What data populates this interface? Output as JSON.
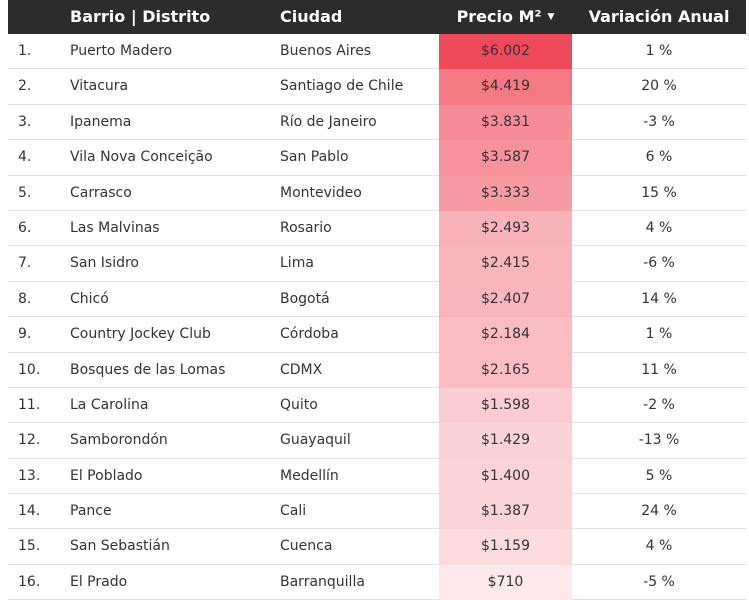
{
  "table": {
    "headers": {
      "barrio": "Barrio | Distrito",
      "ciudad": "Ciudad",
      "precio": "Precio M²",
      "variacion": "Variación Anual"
    },
    "sort_icon": "caret-down-icon",
    "heat_color_high": "#ef4a5a",
    "heat_color_low": "#fde8eb"
  },
  "chart_data": {
    "type": "table",
    "columns": [
      "Barrio | Distrito",
      "Ciudad",
      "Precio M²",
      "Variación Anual"
    ],
    "rows": [
      {
        "rank": "1.",
        "barrio": "Puerto Madero",
        "ciudad": "Buenos Aires",
        "precio": "$6.002",
        "precio_value": 6002,
        "variacion": "1 %"
      },
      {
        "rank": "2.",
        "barrio": "Vitacura",
        "ciudad": "Santiago de Chile",
        "precio": "$4.419",
        "precio_value": 4419,
        "variacion": "20 %"
      },
      {
        "rank": "3.",
        "barrio": "Ipanema",
        "ciudad": "Río de Janeiro",
        "precio": "$3.831",
        "precio_value": 3831,
        "variacion": "-3 %"
      },
      {
        "rank": "4.",
        "barrio": "Vila Nova Conceição",
        "ciudad": "San Pablo",
        "precio": "$3.587",
        "precio_value": 3587,
        "variacion": "6 %"
      },
      {
        "rank": "5.",
        "barrio": "Carrasco",
        "ciudad": "Montevideo",
        "precio": "$3.333",
        "precio_value": 3333,
        "variacion": "15 %"
      },
      {
        "rank": "6.",
        "barrio": "Las Malvinas",
        "ciudad": "Rosario",
        "precio": "$2.493",
        "precio_value": 2493,
        "variacion": "4 %"
      },
      {
        "rank": "7.",
        "barrio": "San Isidro",
        "ciudad": "Lima",
        "precio": "$2.415",
        "precio_value": 2415,
        "variacion": "-6 %"
      },
      {
        "rank": "8.",
        "barrio": "Chicó",
        "ciudad": "Bogotá",
        "precio": "$2.407",
        "precio_value": 2407,
        "variacion": "14 %"
      },
      {
        "rank": "9.",
        "barrio": "Country Jockey Club",
        "ciudad": "Córdoba",
        "precio": "$2.184",
        "precio_value": 2184,
        "variacion": "1 %"
      },
      {
        "rank": "10.",
        "barrio": "Bosques de las Lomas",
        "ciudad": "CDMX",
        "precio": "$2.165",
        "precio_value": 2165,
        "variacion": "11 %"
      },
      {
        "rank": "11.",
        "barrio": "La Carolina",
        "ciudad": "Quito",
        "precio": "$1.598",
        "precio_value": 1598,
        "variacion": "-2 %"
      },
      {
        "rank": "12.",
        "barrio": "Samborondón",
        "ciudad": "Guayaquil",
        "precio": "$1.429",
        "precio_value": 1429,
        "variacion": "-13 %"
      },
      {
        "rank": "13.",
        "barrio": "El Poblado",
        "ciudad": "Medellín",
        "precio": "$1.400",
        "precio_value": 1400,
        "variacion": "5 %"
      },
      {
        "rank": "14.",
        "barrio": "Pance",
        "ciudad": "Cali",
        "precio": "$1.387",
        "precio_value": 1387,
        "variacion": "24 %"
      },
      {
        "rank": "15.",
        "barrio": "San Sebastián",
        "ciudad": "Cuenca",
        "precio": "$1.159",
        "precio_value": 1159,
        "variacion": "4 %"
      },
      {
        "rank": "16.",
        "barrio": "El Prado",
        "ciudad": "Barranquilla",
        "precio": "$710",
        "precio_value": 710,
        "variacion": "-5 %"
      }
    ]
  }
}
